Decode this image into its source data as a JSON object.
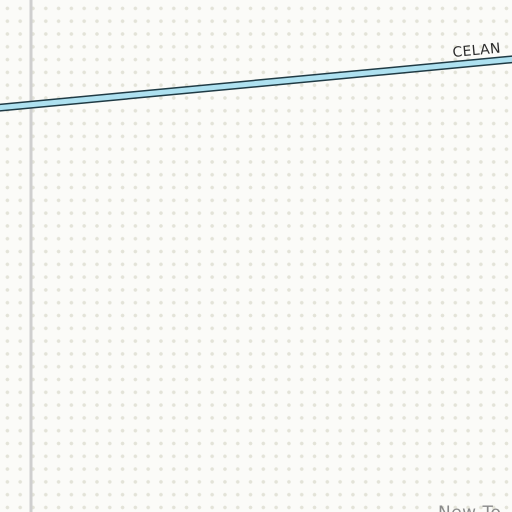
{
  "map": {
    "colors": {
      "background": "#fbfbf8",
      "dot": "#e3e3d8",
      "road_fill": "#aee1f0",
      "road_casing": "#1f3a44",
      "minor_road": "#cfcfcf",
      "road_label": "#2b2b2b",
      "place_label": "#8a8a8a"
    },
    "road_label": "CELAN",
    "place_label": "New To"
  }
}
